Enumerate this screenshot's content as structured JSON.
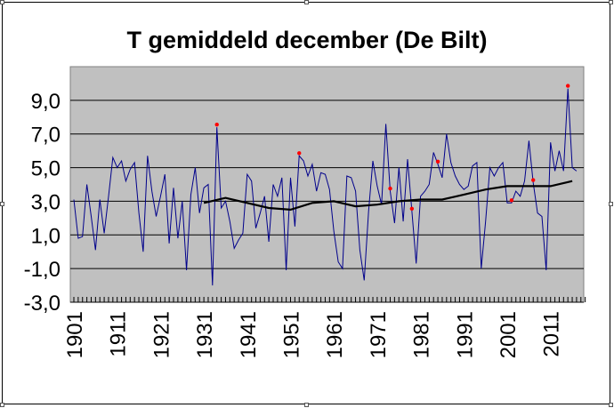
{
  "chart_data": {
    "type": "line",
    "title": "T gemiddeld december (De Bilt)",
    "xlabel": "",
    "ylabel": "",
    "xlim": [
      1901,
      2019
    ],
    "ylim": [
      -3,
      11
    ],
    "grid": true,
    "y_ticks": [
      "-3,0",
      "-1,0",
      "1,0",
      "3,0",
      "5,0",
      "7,0",
      "9,0"
    ],
    "x_ticks": [
      "1901",
      "1911",
      "1921",
      "1931",
      "1941",
      "1951",
      "1961",
      "1971",
      "1981",
      "1991",
      "2001",
      "2011"
    ],
    "colors": {
      "plot_background": "#c0c0c0",
      "series_line": "#00008b",
      "trend_line": "#000000",
      "highlight_points": "#ff0000"
    },
    "series": [
      {
        "role": "december mean temperature",
        "x": [
          1901,
          1902,
          1903,
          1904,
          1905,
          1906,
          1907,
          1908,
          1909,
          1910,
          1911,
          1912,
          1913,
          1914,
          1915,
          1916,
          1917,
          1918,
          1919,
          1920,
          1921,
          1922,
          1923,
          1924,
          1925,
          1926,
          1927,
          1928,
          1929,
          1930,
          1931,
          1932,
          1933,
          1934,
          1935,
          1936,
          1937,
          1938,
          1939,
          1940,
          1941,
          1942,
          1943,
          1944,
          1945,
          1946,
          1947,
          1948,
          1949,
          1950,
          1951,
          1952,
          1953,
          1954,
          1955,
          1956,
          1957,
          1958,
          1959,
          1960,
          1961,
          1962,
          1963,
          1964,
          1965,
          1966,
          1967,
          1968,
          1969,
          1970,
          1971,
          1972,
          1973,
          1974,
          1975,
          1976,
          1977,
          1978,
          1979,
          1980,
          1981,
          1982,
          1983,
          1984,
          1985,
          1986,
          1987,
          1988,
          1989,
          1990,
          1991,
          1992,
          1993,
          1994,
          1995,
          1996,
          1997,
          1998,
          1999,
          2000,
          2001,
          2002,
          2003,
          2004,
          2005,
          2006,
          2007,
          2008,
          2009,
          2010,
          2011,
          2012,
          2013,
          2014,
          2015,
          2016,
          2017
        ],
        "values": [
          3.1,
          0.8,
          0.9,
          4.0,
          2.1,
          0.1,
          3.1,
          1.1,
          3.3,
          5.6,
          5.0,
          5.4,
          4.2,
          4.9,
          5.3,
          2.3,
          0.0,
          5.7,
          3.6,
          2.1,
          3.3,
          4.6,
          0.5,
          3.8,
          0.8,
          3.0,
          -1.1,
          3.4,
          5.0,
          2.3,
          3.8,
          4.0,
          -2.0,
          7.4,
          2.6,
          3.0,
          1.8,
          0.2,
          0.7,
          1.1,
          4.6,
          4.2,
          1.4,
          2.3,
          3.3,
          0.6,
          4.0,
          3.3,
          4.4,
          -1.1,
          4.4,
          1.5,
          5.7,
          5.4,
          4.5,
          5.2,
          3.6,
          4.7,
          4.6,
          3.7,
          1.2,
          -0.6,
          -1.0,
          4.5,
          4.4,
          3.6,
          0.1,
          -1.7,
          2.4,
          5.4,
          3.9,
          2.8,
          7.6,
          3.6,
          1.7,
          5.0,
          1.8,
          5.5,
          2.4,
          -0.7,
          3.3,
          3.6,
          4.0,
          5.9,
          5.2,
          4.4,
          7.0,
          5.3,
          4.5,
          4.0,
          3.7,
          3.9,
          5.1,
          5.3,
          -1.0,
          1.8,
          5.0,
          4.5,
          5.0,
          5.3,
          2.9,
          2.9,
          3.6,
          3.3,
          4.2,
          6.6,
          4.1,
          2.3,
          2.1,
          -1.1,
          6.5,
          4.8,
          6.0,
          4.8,
          9.7,
          5.0,
          4.8
        ]
      },
      {
        "role": "30-year moving average",
        "x": [
          1931,
          1936,
          1941,
          1946,
          1951,
          1956,
          1961,
          1966,
          1971,
          1976,
          1981,
          1986,
          1991,
          1996,
          2001,
          2006,
          2011,
          2016
        ],
        "values": [
          2.9,
          3.2,
          2.9,
          2.6,
          2.5,
          2.9,
          3.0,
          2.7,
          2.8,
          3.0,
          3.1,
          3.1,
          3.4,
          3.7,
          3.9,
          3.9,
          3.9,
          4.2
        ]
      }
    ],
    "highlighted_years": [
      1934,
      1953,
      1974,
      1979,
      1985,
      2002,
      2007,
      2015
    ]
  }
}
